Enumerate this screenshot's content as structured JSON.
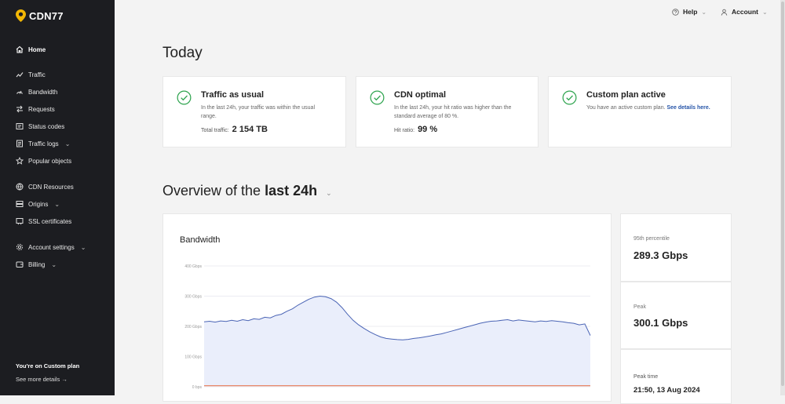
{
  "brand": {
    "name": "CDN77",
    "accent": "#f2b705"
  },
  "sidebar": {
    "items": [
      {
        "label": "Home",
        "icon": "home-icon"
      },
      {
        "label": "Traffic",
        "icon": "traffic-icon"
      },
      {
        "label": "Bandwidth",
        "icon": "bandwidth-icon"
      },
      {
        "label": "Requests",
        "icon": "requests-icon"
      },
      {
        "label": "Status codes",
        "icon": "status-codes-icon"
      },
      {
        "label": "Traffic logs",
        "icon": "traffic-logs-icon"
      },
      {
        "label": "Popular objects",
        "icon": "star-icon"
      },
      {
        "label": "CDN Resources",
        "icon": "globe-icon"
      },
      {
        "label": "Origins",
        "icon": "server-icon"
      },
      {
        "label": "SSL certificates",
        "icon": "certificate-icon"
      },
      {
        "label": "Account settings",
        "icon": "gear-icon"
      },
      {
        "label": "Billing",
        "icon": "wallet-icon"
      }
    ],
    "plan_text": "You're on Custom plan",
    "plan_link": "See more details"
  },
  "header": {
    "help": "Help",
    "account": "Account"
  },
  "today": {
    "title": "Today",
    "cards": [
      {
        "title": "Traffic as usual",
        "desc": "In the last 24h, your traffic was within the usual range.",
        "metric_label": "Total traffic:",
        "metric_value": "2 154 TB"
      },
      {
        "title": "CDN optimal",
        "desc": "In the last 24h, your hit ratio was higher than the standard average of 80 %.",
        "metric_label": "Hit ratio:",
        "metric_value": "99 %"
      },
      {
        "title": "Custom plan active",
        "desc": "You have an active custom plan.",
        "link": "See details here."
      }
    ]
  },
  "overview": {
    "prefix": "Overview of the",
    "period": "last 24h"
  },
  "bandwidth": {
    "title": "Bandwidth"
  },
  "stats": [
    {
      "label": "95th percentile",
      "value": "289.3 Gbps"
    },
    {
      "label": "Peak",
      "value": "300.1 Gbps"
    },
    {
      "label": "Peak time",
      "value": "21:50, 13 Aug 2024"
    }
  ],
  "colors": {
    "sidebar_bg": "#1c1d21",
    "check_green": "#2fa44f",
    "line_blue": "#4a64b5",
    "fill_blue": "#eaeefb",
    "line_orange": "#e8693b"
  },
  "chart_data": {
    "type": "area",
    "title": "Bandwidth",
    "y_tick_labels": [
      "400 Gbps",
      "300 Gbps",
      "200 Gbps",
      "100 Gbps",
      "0 bps"
    ],
    "ylim": [
      0,
      400
    ],
    "y_unit": "Gbps",
    "series": [
      {
        "color": "#4a64b5",
        "values": [
          215,
          217,
          214,
          218,
          216,
          220,
          217,
          222,
          219,
          225,
          223,
          230,
          228,
          236,
          240,
          250,
          258,
          270,
          280,
          290,
          297,
          300,
          298,
          292,
          280,
          262,
          240,
          220,
          205,
          193,
          182,
          173,
          165,
          160,
          158,
          156,
          155,
          157,
          160,
          162,
          165,
          168,
          172,
          175,
          180,
          185,
          190,
          195,
          200,
          205,
          210,
          214,
          217,
          218,
          220,
          222,
          218,
          221,
          219,
          217,
          215,
          218,
          216,
          219,
          217,
          215,
          212,
          210,
          205,
          208,
          170
        ]
      },
      {
        "color": "#e8693b",
        "values": [
          3,
          3,
          3,
          3,
          3,
          3,
          3,
          3,
          3,
          3,
          3,
          3,
          3,
          3,
          3,
          3,
          3,
          3,
          3,
          3,
          3,
          3,
          3,
          3,
          3,
          3,
          3,
          3,
          3,
          3,
          3,
          3,
          3,
          3,
          3,
          3,
          3,
          3,
          3,
          3,
          3,
          3,
          3,
          3,
          3,
          3,
          3,
          3,
          3,
          3,
          3,
          3,
          3,
          3,
          3,
          3,
          3,
          3,
          3,
          3,
          3,
          3,
          3,
          3,
          3,
          3,
          3,
          3,
          3,
          3,
          3
        ]
      }
    ]
  }
}
